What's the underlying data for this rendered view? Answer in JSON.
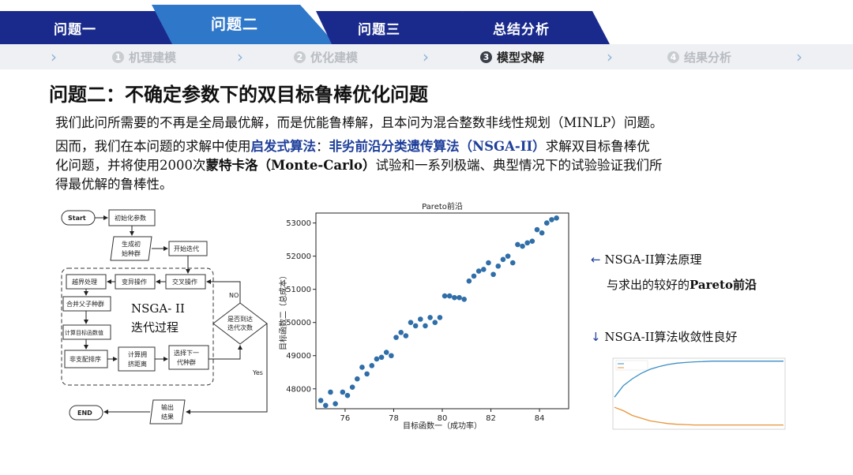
{
  "tabs": [
    {
      "label": "问题一"
    },
    {
      "label": "问题二"
    },
    {
      "label": "问题三"
    },
    {
      "label": "总结分析"
    }
  ],
  "steps": [
    {
      "num": "1",
      "label": "机理建模"
    },
    {
      "num": "2",
      "label": "优化建模"
    },
    {
      "num": "3",
      "label": "模型求解"
    },
    {
      "num": "4",
      "label": "结果分析"
    }
  ],
  "title": "问题二：不确定参数下的双目标鲁棒优化问题",
  "paragraph": {
    "line1": "我们此问所需要的不再是全局最优解，而是优能鲁棒解，且本问为混合整数非线性规划（MINLP）问题。",
    "line2_a": "因而，我们在本问题的求解中使用",
    "line2_hl1": "启发式算法",
    "line2_b": "：",
    "line2_hl2": "非劣前沿分类遗传算法（NSGA-II）",
    "line2_c": "求解双目标鲁棒优",
    "line3_a": "化问题，并将使用2000次",
    "line3_bold": "蒙特卡洛（Monte-Carlo）",
    "line3_b": "试验和一系列极端、典型情况下的试验验证我们所",
    "line4": "得最优解的鲁棒性。"
  },
  "flowchart": {
    "start": "Start",
    "init": "初始化参数",
    "gen1": "生成初",
    "gen2": "始种群",
    "begin_iter": "开始迭代",
    "elite": "越界处理",
    "mutation": "变异操作",
    "crossover": "交叉操作",
    "merge": "合并父子种群",
    "calc_obj": "计算目标函数值",
    "nondom": "非支配排序",
    "crowd1": "计算拥",
    "crowd2": "挤距离",
    "select1": "选择下一",
    "select2": "代种群",
    "cond1": "是否到达",
    "cond2": "迭代次数",
    "no": "NO",
    "yes": "Yes",
    "nsga_title": "NSGA- II",
    "nsga_sub": "迭代过程",
    "output1": "输出",
    "output2": "结果",
    "end": "END"
  },
  "chart_data": [
    {
      "type": "scatter",
      "title": "Pareto前沿",
      "xlabel": "目标函数一（成功率）",
      "ylabel": "目标函数二（总成本）",
      "xlim": [
        74.8,
        85.2
      ],
      "ylim": [
        47400,
        53300
      ],
      "xticks": [
        76,
        78,
        80,
        82,
        84
      ],
      "yticks": [
        48000,
        49000,
        50000,
        51000,
        52000,
        53000
      ],
      "color": "#2f6ea8",
      "x": [
        75.0,
        75.2,
        75.4,
        75.6,
        75.9,
        76.1,
        76.3,
        76.5,
        76.7,
        76.9,
        77.1,
        77.3,
        77.5,
        77.7,
        77.9,
        78.1,
        78.3,
        78.5,
        78.7,
        78.9,
        79.1,
        79.3,
        79.5,
        79.7,
        79.9,
        80.1,
        80.3,
        80.5,
        80.7,
        80.9,
        81.1,
        81.3,
        81.5,
        81.7,
        81.9,
        82.1,
        82.3,
        82.5,
        82.7,
        82.9,
        83.1,
        83.3,
        83.5,
        83.7,
        83.9,
        84.1,
        84.3,
        84.5,
        84.7
      ],
      "y": [
        47650,
        47500,
        47900,
        47550,
        47900,
        47800,
        48050,
        48300,
        48650,
        48450,
        48700,
        48900,
        48950,
        49100,
        49000,
        49550,
        49700,
        49600,
        50000,
        49900,
        50100,
        49900,
        50150,
        50000,
        50150,
        50800,
        50800,
        50750,
        50750,
        50700,
        51250,
        51400,
        51550,
        51600,
        51800,
        51450,
        51700,
        51900,
        52000,
        51800,
        52350,
        52300,
        52400,
        52450,
        52800,
        52700,
        53000,
        53100,
        53150
      ]
    },
    {
      "type": "line",
      "title": "",
      "series": [
        {
          "name": "",
          "color": "#3a8fc4",
          "values": [
            0.45,
            0.62,
            0.72,
            0.8,
            0.86,
            0.9,
            0.93,
            0.95,
            0.96,
            0.97,
            0.975,
            0.98,
            0.98,
            0.98,
            0.98,
            0.98,
            0.98,
            0.98,
            0.98,
            0.98
          ]
        },
        {
          "name": "",
          "color": "#e8953a",
          "values": [
            0.3,
            0.25,
            0.18,
            0.14,
            0.1,
            0.08,
            0.06,
            0.05,
            0.045,
            0.04,
            0.04,
            0.04,
            0.04,
            0.04,
            0.04,
            0.04,
            0.04,
            0.04,
            0.04,
            0.04
          ]
        }
      ]
    }
  ],
  "annotations": {
    "a1_arrow": "←",
    "a1_line1": "NSGA-II算法原理",
    "a1_line2_a": "与求出的较好的",
    "a1_line2_b": "Pareto前沿",
    "a2_arrow": "↓",
    "a2_text": "NSGA-II算法收敛性良好"
  }
}
